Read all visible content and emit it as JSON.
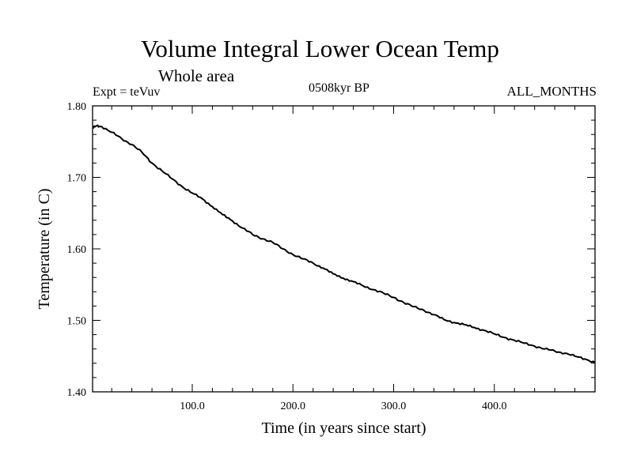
{
  "header": {
    "title": "Volume Integral Lower Ocean Temp",
    "subtitle": "Whole area",
    "expt": "Expt = teVuv",
    "period": "0508kyr BP",
    "months": "ALL_MONTHS"
  },
  "chart_data": {
    "type": "line",
    "title": "Volume Integral Lower Ocean Temp",
    "xlabel": "Time (in years since start)",
    "ylabel": "Temperature (in C)",
    "xlim": [
      1,
      500
    ],
    "ylim": [
      1.4,
      1.8
    ],
    "x_ticks": [
      100,
      200,
      300,
      400
    ],
    "x_tick_labels": [
      "100.0",
      "200.0",
      "300.0",
      "400.0"
    ],
    "y_ticks": [
      1.4,
      1.5,
      1.6,
      1.7,
      1.8
    ],
    "y_tick_labels": [
      "1.40",
      "1.50",
      "1.60",
      "1.70",
      "1.80"
    ],
    "grid": false,
    "series": [
      {
        "color": "#000000",
        "x": [
          1,
          5,
          10,
          20,
          30,
          40,
          50,
          60,
          70,
          80,
          90,
          100,
          110,
          120,
          130,
          140,
          150,
          160,
          170,
          180,
          190,
          200,
          210,
          220,
          230,
          240,
          250,
          260,
          270,
          280,
          290,
          300,
          310,
          320,
          330,
          340,
          350,
          360,
          370,
          380,
          390,
          400,
          410,
          420,
          430,
          440,
          450,
          460,
          470,
          480,
          490,
          500
        ],
        "y": [
          1.769,
          1.772,
          1.771,
          1.763,
          1.754,
          1.746,
          1.735,
          1.72,
          1.709,
          1.698,
          1.687,
          1.678,
          1.67,
          1.659,
          1.648,
          1.639,
          1.629,
          1.62,
          1.614,
          1.609,
          1.6,
          1.592,
          1.586,
          1.58,
          1.573,
          1.565,
          1.559,
          1.554,
          1.548,
          1.543,
          1.538,
          1.532,
          1.525,
          1.519,
          1.514,
          1.508,
          1.501,
          1.497,
          1.494,
          1.49,
          1.486,
          1.481,
          1.476,
          1.472,
          1.468,
          1.464,
          1.46,
          1.457,
          1.454,
          1.45,
          1.446,
          1.441
        ]
      }
    ]
  }
}
